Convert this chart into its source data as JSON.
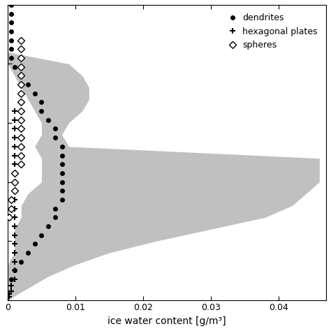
{
  "xlabel": "ice water content [g/m³]",
  "xlim": [
    0,
    0.047
  ],
  "xticks": [
    0,
    0.01,
    0.02,
    0.03,
    0.04
  ],
  "ylim": [
    0,
    1.0
  ],
  "background_color": "#ffffff",
  "shaded_color": "#c0c0c0",
  "shaded_y": [
    1.0,
    0.96,
    0.92,
    0.88,
    0.84,
    0.8,
    0.76,
    0.72,
    0.68,
    0.64,
    0.6,
    0.56,
    0.52,
    0.48,
    0.44,
    0.4,
    0.36,
    0.32,
    0.28,
    0.24,
    0.2,
    0.16,
    0.12,
    0.08,
    0.04,
    0.0
  ],
  "shaded_left": [
    0.0,
    0.0,
    0.0,
    0.0,
    0.0,
    0.0,
    0.001,
    0.002,
    0.003,
    0.004,
    0.005,
    0.005,
    0.004,
    0.005,
    0.005,
    0.005,
    0.003,
    0.002,
    0.002,
    0.001,
    0.001,
    0.001,
    0.0,
    0.0,
    0.0,
    0.0
  ],
  "shaded_right": [
    0.0,
    0.0,
    0.0,
    0.0,
    0.0,
    0.009,
    0.011,
    0.012,
    0.012,
    0.011,
    0.009,
    0.008,
    0.009,
    0.046,
    0.046,
    0.046,
    0.044,
    0.042,
    0.038,
    0.03,
    0.022,
    0.015,
    0.01,
    0.006,
    0.003,
    0.0
  ],
  "dendrites_x": [
    0.0005,
    0.0005,
    0.0005,
    0.0005,
    0.0005,
    0.0005,
    0.0005,
    0.001,
    0.002,
    0.003,
    0.004,
    0.005,
    0.005,
    0.006,
    0.007,
    0.007,
    0.008,
    0.008,
    0.008,
    0.008,
    0.008,
    0.008,
    0.008,
    0.007,
    0.007,
    0.006,
    0.005,
    0.004,
    0.003,
    0.002,
    0.001,
    0.0005
  ],
  "dendrites_y": [
    1.0,
    0.97,
    0.94,
    0.91,
    0.88,
    0.85,
    0.82,
    0.79,
    0.76,
    0.73,
    0.7,
    0.67,
    0.64,
    0.61,
    0.58,
    0.55,
    0.52,
    0.49,
    0.46,
    0.43,
    0.4,
    0.37,
    0.34,
    0.31,
    0.28,
    0.25,
    0.22,
    0.19,
    0.16,
    0.13,
    0.1,
    0.07
  ],
  "hexplates_x": [
    0.001,
    0.001,
    0.001,
    0.001,
    0.001,
    0.001,
    0.001,
    0.001,
    0.001,
    0.001,
    0.001,
    0.001,
    0.001,
    0.001,
    0.001,
    0.001,
    0.001,
    0.001,
    0.001,
    0.001,
    0.0005,
    0.0005,
    0.0002,
    0.0002
  ],
  "hexplates_y": [
    0.64,
    0.61,
    0.58,
    0.55,
    0.52,
    0.49,
    0.46,
    0.43,
    0.4,
    0.37,
    0.34,
    0.31,
    0.28,
    0.25,
    0.22,
    0.19,
    0.16,
    0.13,
    0.1,
    0.07,
    0.05,
    0.03,
    0.02,
    0.01
  ],
  "spheres_x": [
    0.002,
    0.002,
    0.002,
    0.002,
    0.002,
    0.002,
    0.002,
    0.002,
    0.002,
    0.002,
    0.002,
    0.002,
    0.002,
    0.002,
    0.002,
    0.001,
    0.001,
    0.001,
    0.0005,
    0.0005,
    0.0002
  ],
  "spheres_y": [
    0.88,
    0.85,
    0.82,
    0.79,
    0.76,
    0.73,
    0.7,
    0.67,
    0.64,
    0.61,
    0.58,
    0.55,
    0.52,
    0.49,
    0.46,
    0.43,
    0.4,
    0.37,
    0.34,
    0.31,
    0.28
  ]
}
